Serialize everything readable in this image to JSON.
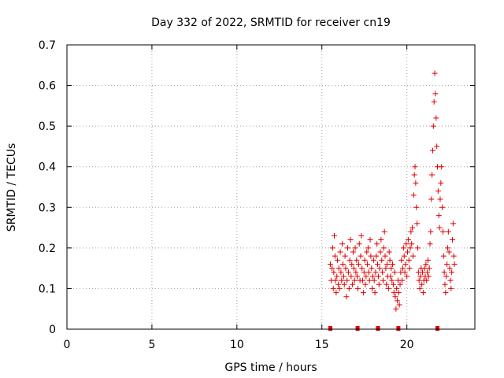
{
  "chart_data": {
    "type": "scatter",
    "title": "Day 332 of 2022, SRMTID for receiver cn19",
    "xlabel": "GPS time / hours",
    "ylabel": "SRMTID / TECUs",
    "xlim": [
      0,
      24
    ],
    "ylim": [
      0,
      0.7
    ],
    "xticks": [
      0,
      5,
      10,
      15,
      20
    ],
    "xtick_labels": [
      "0",
      "5",
      "10",
      "15",
      "20"
    ],
    "yticks": [
      0,
      0.1,
      0.2,
      0.3,
      0.4,
      0.5,
      0.6,
      0.7
    ],
    "ytick_labels": [
      "0",
      "0.1",
      "0.2",
      "0.3",
      "0.4",
      "0.5",
      "0.6",
      "0.7"
    ],
    "grid": true,
    "marker": "+",
    "color": "#e00000",
    "gap_markers_x": [
      15.5,
      17.1,
      18.3,
      19.5,
      21.8
    ],
    "x": [
      15.5,
      15.55,
      15.6,
      15.63,
      15.67,
      15.7,
      15.73,
      15.77,
      15.8,
      15.84,
      15.88,
      15.92,
      15.96,
      16.0,
      16.04,
      16.08,
      16.12,
      16.16,
      16.2,
      16.24,
      16.28,
      16.32,
      16.36,
      16.4,
      16.44,
      16.48,
      16.52,
      16.56,
      16.6,
      16.64,
      16.68,
      16.72,
      16.76,
      16.8,
      16.84,
      16.88,
      16.92,
      16.96,
      17.0,
      17.04,
      17.08,
      17.12,
      17.16,
      17.2,
      17.24,
      17.28,
      17.32,
      17.36,
      17.4,
      17.44,
      17.48,
      17.52,
      17.56,
      17.6,
      17.64,
      17.68,
      17.72,
      17.76,
      17.8,
      17.84,
      17.88,
      17.92,
      17.96,
      18.0,
      18.04,
      18.08,
      18.12,
      18.16,
      18.2,
      18.24,
      18.28,
      18.32,
      18.36,
      18.4,
      18.44,
      18.48,
      18.52,
      18.56,
      18.6,
      18.64,
      18.68,
      18.72,
      18.76,
      18.8,
      18.84,
      18.88,
      18.92,
      18.96,
      19.0,
      19.04,
      19.08,
      19.12,
      19.16,
      19.2,
      19.24,
      19.28,
      19.32,
      19.36,
      19.4,
      19.44,
      19.48,
      19.52,
      19.56,
      19.6,
      19.64,
      19.68,
      19.72,
      19.76,
      19.8,
      19.84,
      19.88,
      19.92,
      19.96,
      20.0,
      20.04,
      20.08,
      20.12,
      20.16,
      20.2,
      20.24,
      20.28,
      20.32,
      20.36,
      20.4,
      20.44,
      20.48,
      20.52,
      20.56,
      20.6,
      20.64,
      20.68,
      20.72,
      20.76,
      20.8,
      20.84,
      20.88,
      20.92,
      20.96,
      21.0,
      21.04,
      21.08,
      21.12,
      21.16,
      21.2,
      21.24,
      21.28,
      21.32,
      21.36,
      21.4,
      21.44,
      21.48,
      21.52,
      21.56,
      21.6,
      21.64,
      21.68,
      21.72,
      21.76,
      21.8,
      21.84,
      21.88,
      21.92,
      21.96,
      22.0,
      22.04,
      22.08,
      22.12,
      22.16,
      22.2,
      22.24,
      22.28,
      22.32,
      22.36,
      22.4,
      22.44,
      22.48,
      22.52,
      22.56,
      22.6,
      22.64,
      22.68,
      22.72,
      22.76,
      22.8
    ],
    "y": [
      0.16,
      0.12,
      0.15,
      0.2,
      0.1,
      0.14,
      0.23,
      0.18,
      0.12,
      0.09,
      0.13,
      0.17,
      0.11,
      0.15,
      0.1,
      0.19,
      0.14,
      0.12,
      0.21,
      0.16,
      0.13,
      0.11,
      0.18,
      0.15,
      0.08,
      0.12,
      0.2,
      0.14,
      0.1,
      0.17,
      0.22,
      0.13,
      0.16,
      0.11,
      0.19,
      0.15,
      0.12,
      0.2,
      0.14,
      0.17,
      0.13,
      0.1,
      0.16,
      0.21,
      0.12,
      0.18,
      0.23,
      0.15,
      0.12,
      0.09,
      0.14,
      0.17,
      0.11,
      0.13,
      0.19,
      0.16,
      0.2,
      0.14,
      0.12,
      0.22,
      0.18,
      0.15,
      0.1,
      0.13,
      0.17,
      0.12,
      0.09,
      0.14,
      0.18,
      0.21,
      0.16,
      0.13,
      0.11,
      0.15,
      0.19,
      0.22,
      0.17,
      0.14,
      0.12,
      0.2,
      0.24,
      0.18,
      0.15,
      0.11,
      0.16,
      0.13,
      0.1,
      0.19,
      0.17,
      0.13,
      0.15,
      0.12,
      0.16,
      0.11,
      0.09,
      0.14,
      0.08,
      0.05,
      0.1,
      0.07,
      0.12,
      0.09,
      0.06,
      0.11,
      0.14,
      0.17,
      0.12,
      0.15,
      0.2,
      0.18,
      0.14,
      0.16,
      0.21,
      0.13,
      0.19,
      0.22,
      0.17,
      0.15,
      0.2,
      0.24,
      0.21,
      0.25,
      0.18,
      0.33,
      0.38,
      0.4,
      0.36,
      0.3,
      0.26,
      0.2,
      0.14,
      0.12,
      0.1,
      0.13,
      0.15,
      0.11,
      0.14,
      0.09,
      0.12,
      0.15,
      0.13,
      0.16,
      0.12,
      0.14,
      0.17,
      0.13,
      0.15,
      0.21,
      0.24,
      0.32,
      0.38,
      0.44,
      0.5,
      0.56,
      0.63,
      0.58,
      0.52,
      0.45,
      0.4,
      0.34,
      0.28,
      0.25,
      0.32,
      0.36,
      0.4,
      0.3,
      0.24,
      0.18,
      0.14,
      0.11,
      0.09,
      0.13,
      0.16,
      0.2,
      0.24,
      0.19,
      0.15,
      0.12,
      0.1,
      0.14,
      0.22,
      0.26,
      0.18,
      0.16
    ]
  }
}
